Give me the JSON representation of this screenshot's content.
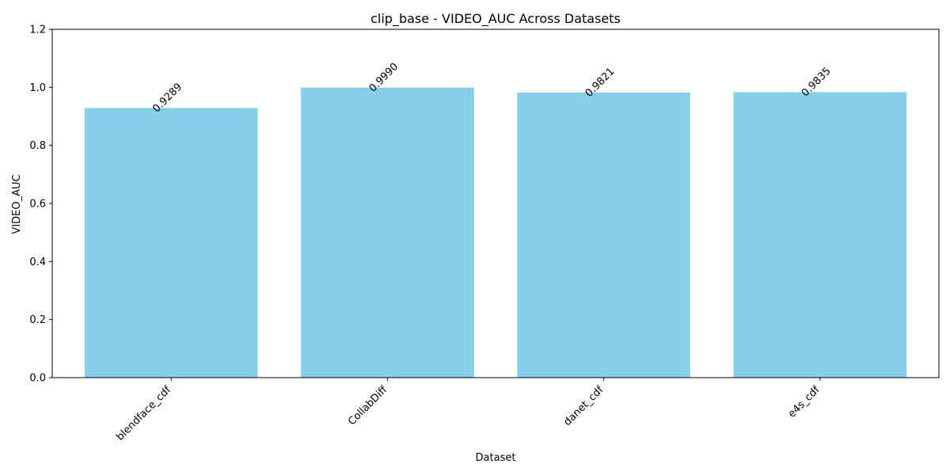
{
  "chart_data": {
    "type": "bar",
    "title": "clip_base - VIDEO_AUC Across Datasets",
    "xlabel": "Dataset",
    "ylabel": "VIDEO_AUC",
    "categories": [
      "blendface_cdf",
      "CollabDiff",
      "danet_cdf",
      "e4s_cdf"
    ],
    "values": [
      0.9289,
      0.999,
      0.9821,
      0.9835
    ],
    "value_labels": [
      "0.9289",
      "0.9990",
      "0.9821",
      "0.9835"
    ],
    "ylim": [
      0,
      1.2
    ],
    "yticks": [
      0.0,
      0.2,
      0.4,
      0.6,
      0.8,
      1.0,
      1.2
    ],
    "ytick_labels": [
      "0.0",
      "0.2",
      "0.4",
      "0.6",
      "0.8",
      "1.0",
      "1.2"
    ],
    "grid": false,
    "legend": "none",
    "bar_color": "#87ceeb"
  }
}
